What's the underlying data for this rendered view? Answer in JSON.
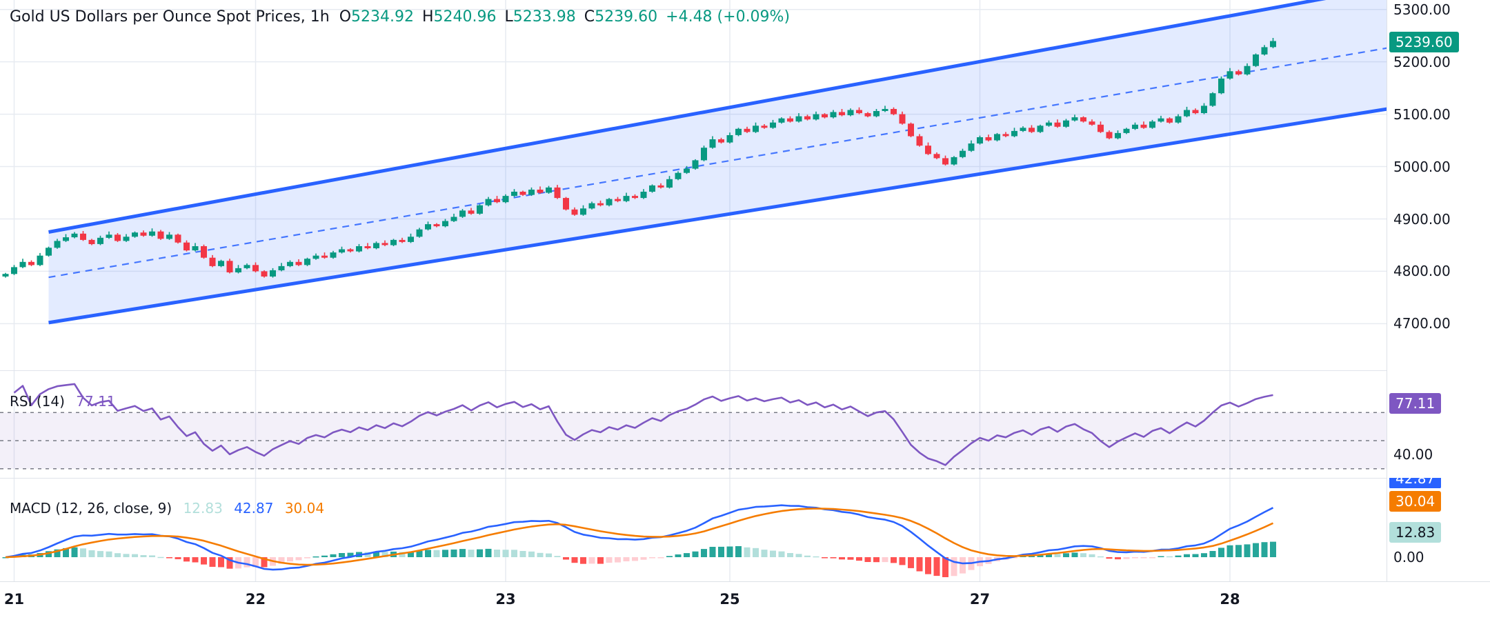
{
  "legend": {
    "title": "Gold US Dollars per Ounce Spot Prices, 1h",
    "o_label": "O",
    "o": "5234.92",
    "h_label": "H",
    "h": "5240.96",
    "l_label": "L",
    "l": "5233.98",
    "c_label": "C",
    "c": "5239.60",
    "change": "+4.48 (+0.09%)"
  },
  "price_axis": {
    "last_price": "5239.60"
  },
  "rsi_panel": {
    "label": "RSI (14)",
    "value": "77.11",
    "badge": "77.11",
    "axis_tick": "40.00"
  },
  "macd_panel": {
    "label": "MACD (12, 26, close, 9)",
    "hist_value": "12.83",
    "macd_value": "42.87",
    "signal_value": "30.04",
    "badge_macd": "42.87",
    "badge_signal": "30.04",
    "badge_hist": "12.83",
    "axis_tick": "0.00"
  },
  "colors": {
    "up": "#089981",
    "down": "#f23645",
    "channel_blue": "#2962ff",
    "rsi_purple": "#7e57c2",
    "macd_blue": "#2962ff",
    "signal_orange": "#f57c00",
    "hist_up": "#26a69a",
    "hist_up_pale": "#b2dfdb",
    "hist_down": "#ff5252",
    "hist_down_pale": "#ffcdd2",
    "grid": "#e7ebf1",
    "guide_gray": "#787b86"
  },
  "chart_data": [
    {
      "type": "candlestick",
      "panel": "price",
      "title": "Gold US Dollars per Ounce Spot Prices, 1h",
      "interval": "1h",
      "ohlc_last": {
        "open": 5234.92,
        "high": 5240.96,
        "low": 5233.98,
        "close": 5239.6,
        "change": 4.48,
        "change_pct": 0.09
      },
      "ylim": [
        4611,
        5318
      ],
      "yticks": [
        5300,
        5200,
        5100,
        5000,
        4900,
        4800,
        4700
      ],
      "x_day_ticks": [
        {
          "label": "21",
          "index": 1
        },
        {
          "label": "22",
          "index": 29
        },
        {
          "label": "23",
          "index": 58
        },
        {
          "label": "25",
          "index": 84
        },
        {
          "label": "27",
          "index": 113
        },
        {
          "label": "28",
          "index": 142
        }
      ],
      "first_open": 4790,
      "closes": [
        4795,
        4808,
        4818,
        4812,
        4830,
        4845,
        4858,
        4865,
        4872,
        4860,
        4852,
        4864,
        4870,
        4858,
        4866,
        4874,
        4868,
        4876,
        4862,
        4870,
        4855,
        4840,
        4848,
        4826,
        4810,
        4820,
        4798,
        4806,
        4812,
        4800,
        4790,
        4802,
        4810,
        4818,
        4812,
        4824,
        4830,
        4826,
        4836,
        4842,
        4838,
        4848,
        4844,
        4854,
        4850,
        4860,
        4856,
        4866,
        4880,
        4890,
        4886,
        4896,
        4904,
        4916,
        4910,
        4926,
        4938,
        4932,
        4944,
        4952,
        4946,
        4956,
        4950,
        4960,
        4940,
        4918,
        4908,
        4920,
        4930,
        4926,
        4938,
        4934,
        4944,
        4940,
        4952,
        4964,
        4960,
        4976,
        4988,
        4996,
        5012,
        5036,
        5052,
        5046,
        5060,
        5072,
        5066,
        5078,
        5074,
        5084,
        5092,
        5086,
        5096,
        5090,
        5100,
        5094,
        5104,
        5098,
        5108,
        5102,
        5096,
        5106,
        5110,
        5100,
        5082,
        5058,
        5040,
        5024,
        5016,
        5004,
        5018,
        5030,
        5044,
        5056,
        5050,
        5062,
        5058,
        5068,
        5074,
        5066,
        5078,
        5084,
        5076,
        5088,
        5094,
        5086,
        5080,
        5066,
        5054,
        5064,
        5072,
        5080,
        5074,
        5086,
        5092,
        5084,
        5096,
        5108,
        5102,
        5116,
        5140,
        5168,
        5182,
        5176,
        5192,
        5214,
        5228,
        5239.6
      ],
      "channel": {
        "start_index": 5,
        "end_index": 161,
        "upper": [
          4875,
          5345
        ],
        "lower": [
          4702,
          5112
        ],
        "mid_dashed": true,
        "color": "#2962ff"
      }
    },
    {
      "type": "line",
      "panel": "rsi",
      "name": "RSI (14)",
      "period": 14,
      "last": 77.11,
      "ylim": [
        23.5,
        100
      ],
      "guides": [
        70,
        50,
        30
      ],
      "band": [
        30,
        70
      ],
      "axis_tick": 40
    },
    {
      "type": "macd",
      "panel": "macd",
      "name": "MACD (12, 26, close, 9)",
      "params": [
        12,
        26,
        9
      ],
      "hist_last": 12.83,
      "macd_last": 42.87,
      "signal_last": 30.04,
      "zero_tick": 0
    }
  ]
}
